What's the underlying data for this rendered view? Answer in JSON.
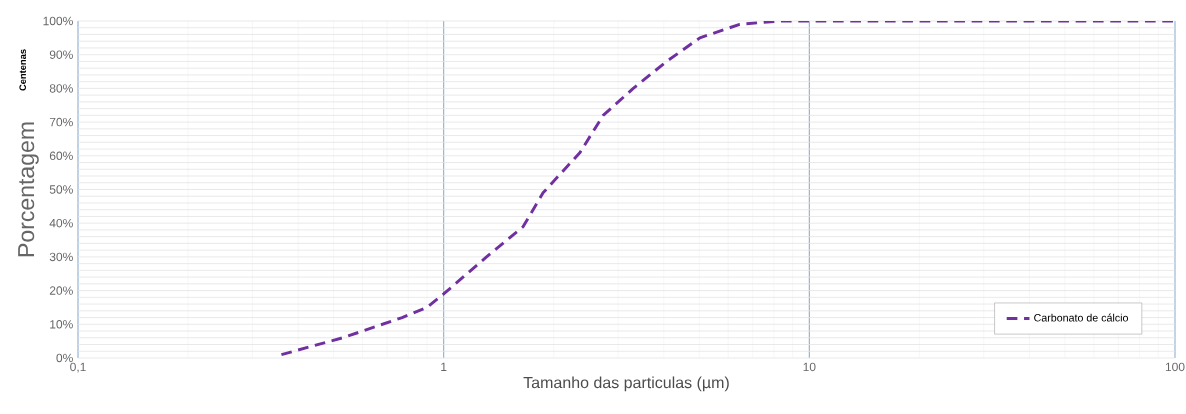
{
  "chart_data": {
    "type": "line",
    "xlabel": "Tamanho das particulas (µm)",
    "ylabel": "Porcentagem",
    "annotations": [
      "Centenas"
    ],
    "log": "x",
    "x": [
      0.36,
      0.53,
      0.77,
      0.9,
      1.0,
      1.31,
      1.65,
      1.87,
      2.36,
      2.73,
      3.3,
      4.07,
      5.02,
      6.45,
      8.3,
      10,
      100
    ],
    "series": [
      {
        "name": "Carbonato de cálcio",
        "color": "#7030a0",
        "values": [
          1,
          6,
          12,
          15,
          19,
          30,
          39,
          49,
          61,
          72,
          80,
          88,
          95,
          99,
          100,
          100,
          100
        ]
      }
    ],
    "xlim": [
      0.1,
      100
    ],
    "ylim": [
      0,
      100
    ],
    "xticks": [
      {
        "value": 0.1,
        "label": "0,1"
      },
      1,
      10,
      100
    ],
    "yticks": [
      {
        "value": 0,
        "label": "0%"
      },
      {
        "value": 10,
        "label": "10%"
      },
      {
        "value": 20,
        "label": "20%"
      },
      {
        "value": 30,
        "label": "30%"
      },
      {
        "value": 40,
        "label": "40%"
      },
      {
        "value": 50,
        "label": "50%"
      },
      {
        "value": 60,
        "label": "60%"
      },
      {
        "value": 70,
        "label": "70%"
      },
      {
        "value": 80,
        "label": "80%"
      },
      {
        "value": 90,
        "label": "90%"
      },
      {
        "value": 100,
        "label": "100%"
      }
    ],
    "grid": true,
    "legend": "bottom right",
    "marker": "none",
    "line_style": "dashed"
  }
}
